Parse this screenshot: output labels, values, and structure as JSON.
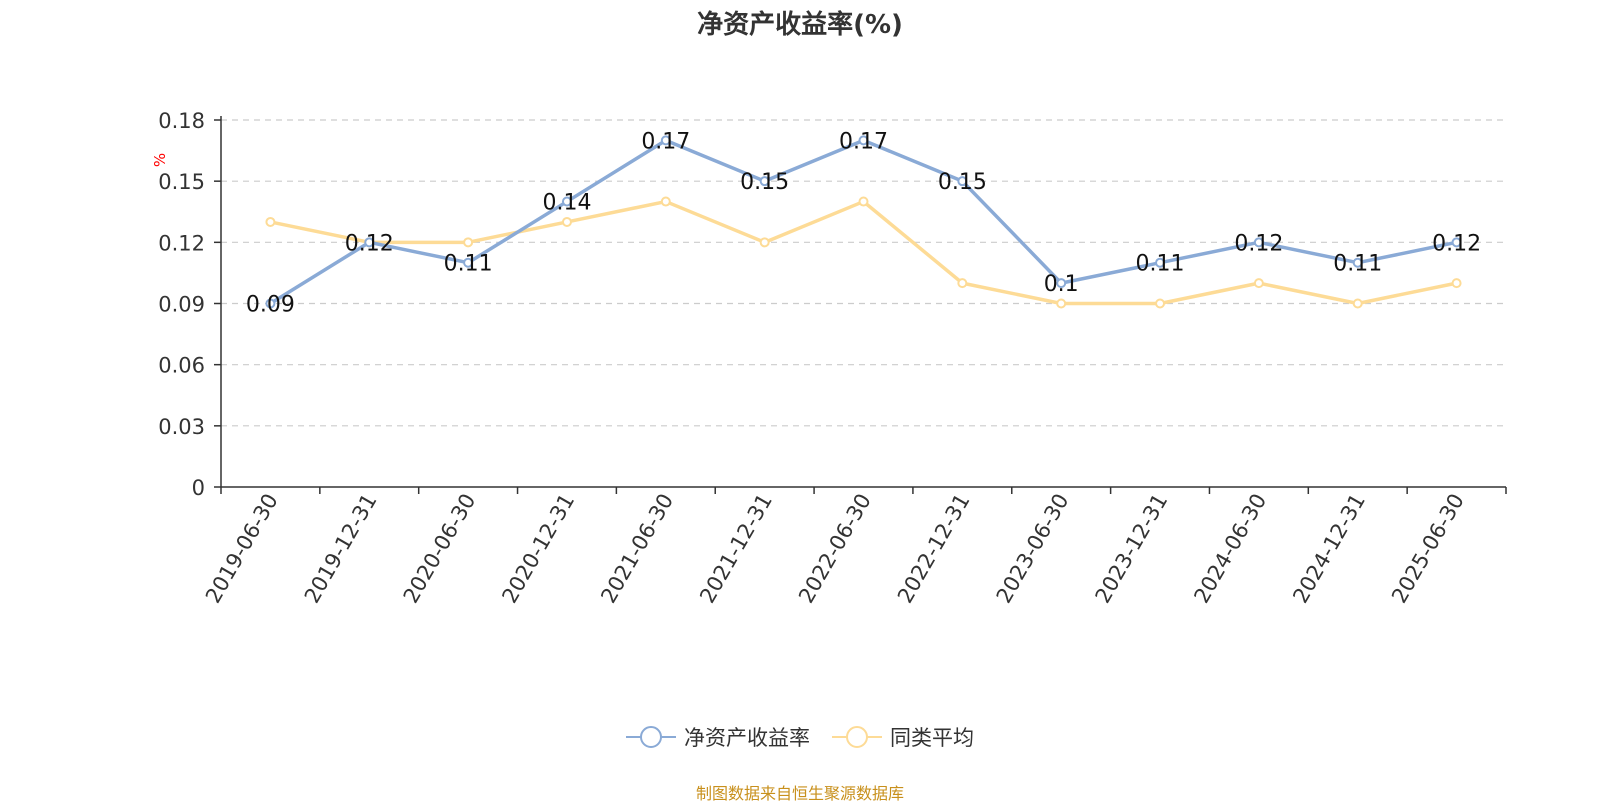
{
  "colors": {
    "primary": "#8aaad6",
    "average": "#fddb96",
    "unit": "#ff0000",
    "source": "#c8901c"
  },
  "chart_data": {
    "type": "line",
    "title": "净资产收益率(%)",
    "ylabel": "%",
    "ylim": [
      0,
      0.18
    ],
    "yticks": [
      0,
      0.03,
      0.06,
      0.09,
      0.12,
      0.15,
      0.18
    ],
    "ytick_labels": [
      "0",
      "0.03",
      "0.06",
      "0.09",
      "0.12",
      "0.15",
      "0.18"
    ],
    "grid": true,
    "legend_position": "bottom",
    "categories": [
      "2019-06-30",
      "2019-12-31",
      "2020-06-30",
      "2020-12-31",
      "2021-06-30",
      "2021-12-31",
      "2022-06-30",
      "2022-12-31",
      "2023-06-30",
      "2023-12-31",
      "2024-06-30",
      "2024-12-31",
      "2025-06-30"
    ],
    "series": [
      {
        "name": "净资产收益率",
        "color": "#8aaad6",
        "values": [
          0.09,
          0.12,
          0.11,
          0.14,
          0.17,
          0.15,
          0.17,
          0.15,
          0.1,
          0.11,
          0.12,
          0.11,
          0.12
        ],
        "labels": [
          "0.09",
          "0.12",
          "0.11",
          "0.14",
          "0.17",
          "0.15",
          "0.17",
          "0.15",
          "0.1",
          "0.11",
          "0.12",
          "0.11",
          "0.12"
        ]
      },
      {
        "name": "同类平均",
        "color": "#fddb96",
        "values": [
          0.13,
          0.12,
          0.12,
          0.13,
          0.14,
          0.12,
          0.14,
          0.1,
          0.09,
          0.09,
          0.1,
          0.09,
          0.1
        ]
      }
    ]
  },
  "source_text": "制图数据来自恒生聚源数据库"
}
